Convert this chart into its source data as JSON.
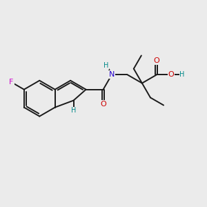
{
  "background_color": "#ebebeb",
  "bond_color": "#1a1a1a",
  "bond_width": 1.4,
  "atom_colors": {
    "C": "#1a1a1a",
    "N": "#2200cc",
    "O": "#cc0000",
    "F": "#cc00cc",
    "H": "#008888"
  },
  "figsize": [
    3.0,
    3.0
  ],
  "dpi": 100,
  "xlim": [
    0,
    10
  ],
  "ylim": [
    0,
    10
  ]
}
